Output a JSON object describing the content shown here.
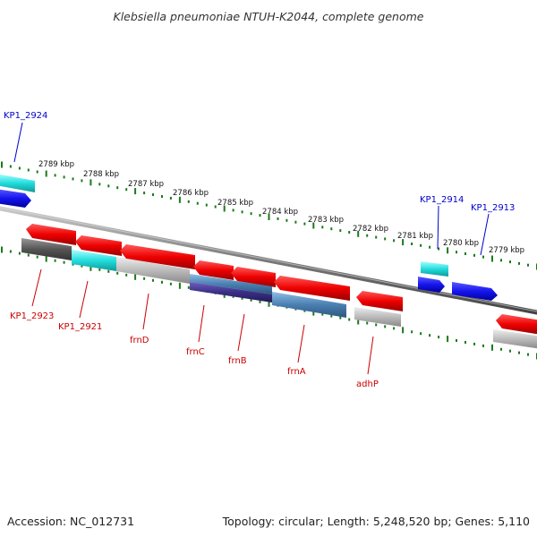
{
  "title": "Klebsiella pneumoniae NTUH-K2044, complete genome",
  "footer": {
    "accession": "Accession: NC_012731",
    "summary": "Topology: circular; Length: 5,248,520 bp; Genes: 5,110"
  },
  "colors": {
    "forward_gene": "#1a1aee",
    "reverse_gene": "#dd0000",
    "forward_label": "#0000cc",
    "reverse_label": "#cc0000",
    "ticks": "#1a7a1a",
    "backbone": "#808080",
    "feature_cyan": "#22dddd",
    "feature_grey": "#aaaaaa",
    "feature_darkgrey": "#555555",
    "feature_steelblue": "#4a7fb0",
    "feature_purple": "#3a2f86"
  },
  "kbp_ticks": [
    "2789 kbp",
    "2788 kbp",
    "2787 kbp",
    "2786 kbp",
    "2785 kbp",
    "2784 kbp",
    "2783 kbp",
    "2782 kbp",
    "2781 kbp",
    "2780 kbp",
    "2779 kbp"
  ],
  "forward_labels": [
    "KP1_2924",
    "KP1_2914",
    "KP1_2913"
  ],
  "reverse_labels": [
    "KP1_2923",
    "KP1_2921",
    "frnD",
    "frnC",
    "frnB",
    "frnA",
    "adhP"
  ]
}
